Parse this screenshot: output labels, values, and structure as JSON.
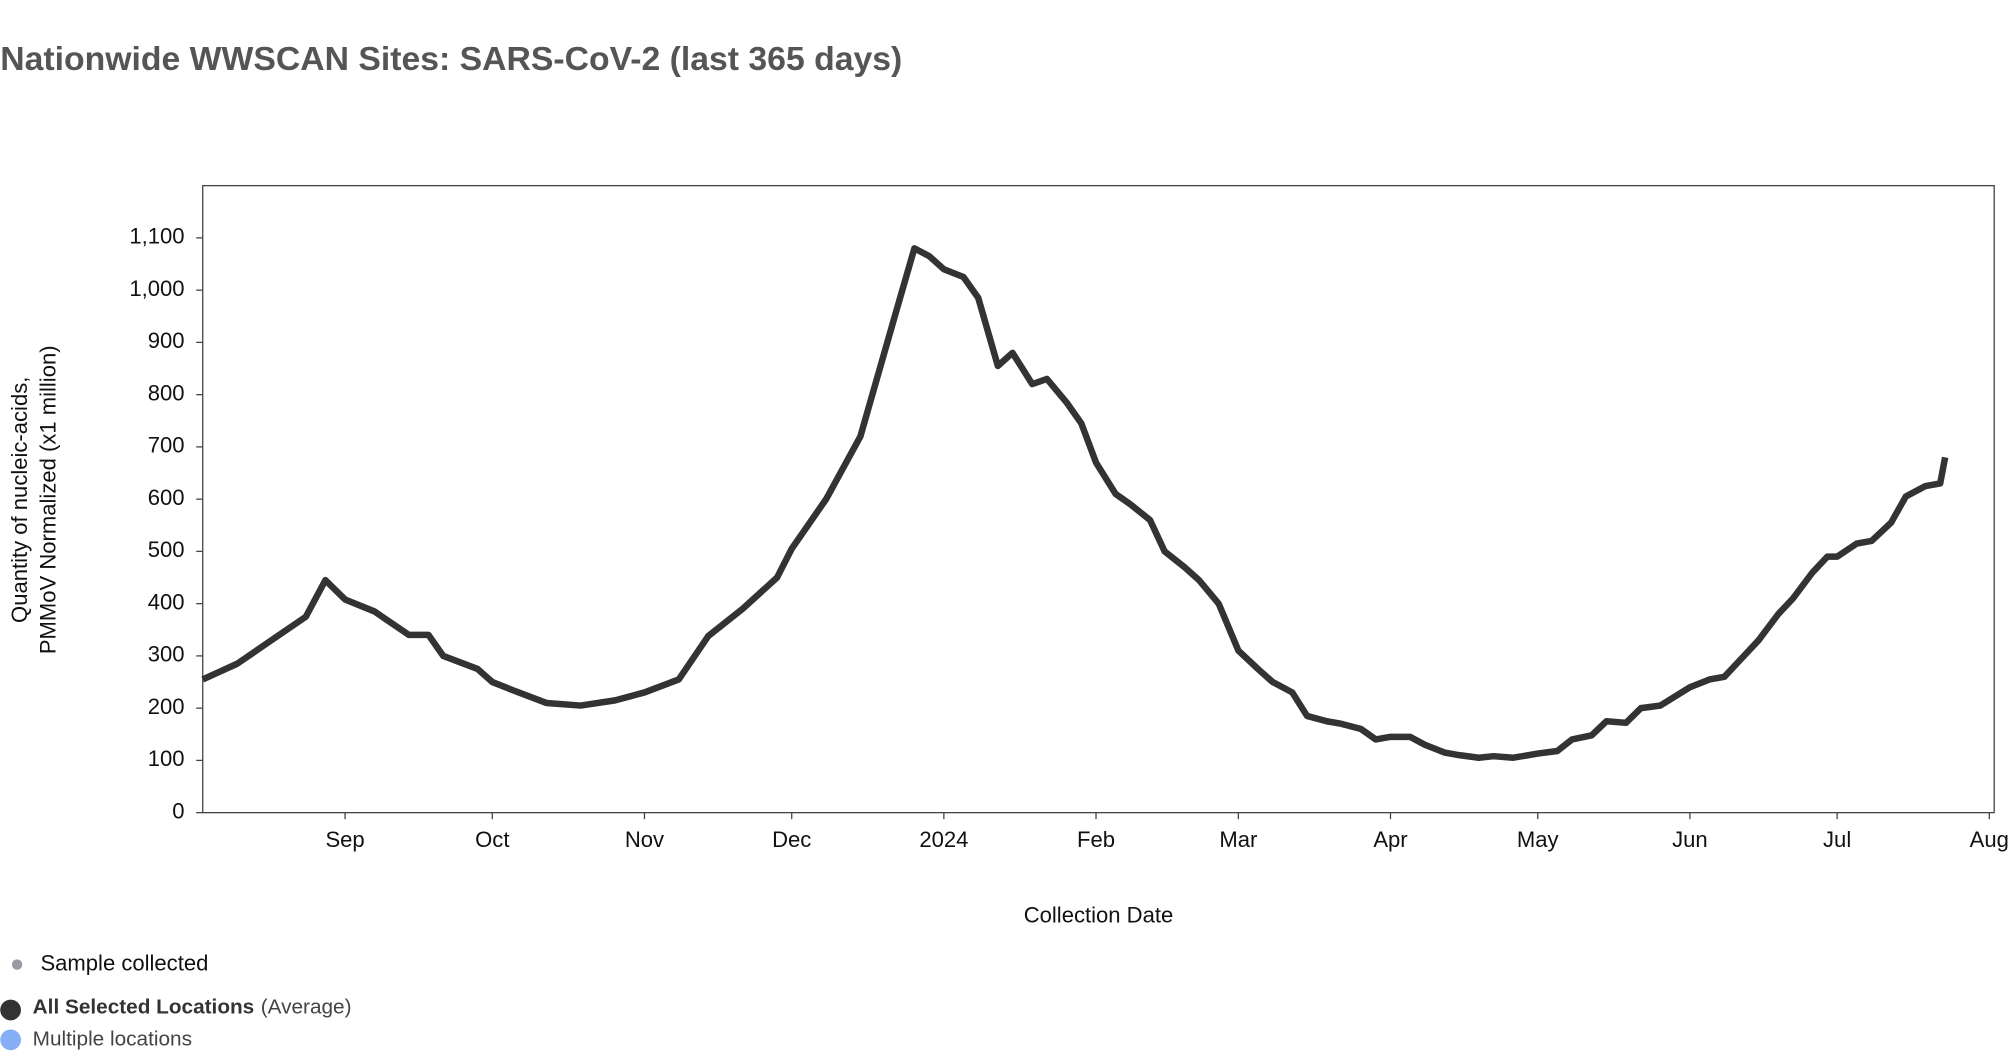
{
  "chart_data": {
    "type": "line",
    "title": "Nationwide WWSCAN Sites: SARS-CoV-2 (last 365 days)",
    "xlabel": "Collection Date",
    "ylabel": [
      "Quantity of nucleic-acids,",
      "PMMoV Normalized (x1 million)"
    ],
    "xlim": [
      "2023-08-03",
      "2024-08-02"
    ],
    "xticks": [
      {
        "value": "2023-09-01",
        "label": "Sep"
      },
      {
        "value": "2023-10-01",
        "label": "Oct"
      },
      {
        "value": "2023-11-01",
        "label": "Nov"
      },
      {
        "value": "2023-12-01",
        "label": "Dec"
      },
      {
        "value": "2024-01-01",
        "label": "2024"
      },
      {
        "value": "2024-02-01",
        "label": "Feb"
      },
      {
        "value": "2024-03-01",
        "label": "Mar"
      },
      {
        "value": "2024-04-01",
        "label": "Apr"
      },
      {
        "value": "2024-05-01",
        "label": "May"
      },
      {
        "value": "2024-06-01",
        "label": "Jun"
      },
      {
        "value": "2024-07-01",
        "label": "Jul"
      },
      {
        "value": "2024-08-01",
        "label": "Aug"
      }
    ],
    "ylim": [
      0,
      1200
    ],
    "yticks": [
      0,
      100,
      200,
      300,
      400,
      500,
      600,
      700,
      800,
      900,
      {
        "value": 1000,
        "label": "1,000"
      },
      {
        "value": 1100,
        "label": "1,100"
      }
    ],
    "x": [
      "2023-08-03",
      "2023-08-10",
      "2023-08-17",
      "2023-08-24",
      "2023-08-28",
      "2023-09-01",
      "2023-09-07",
      "2023-09-14",
      "2023-09-18",
      "2023-09-21",
      "2023-09-28",
      "2023-10-01",
      "2023-10-05",
      "2023-10-12",
      "2023-10-19",
      "2023-10-26",
      "2023-11-01",
      "2023-11-08",
      "2023-11-14",
      "2023-11-21",
      "2023-11-28",
      "2023-12-01",
      "2023-12-08",
      "2023-12-15",
      "2023-12-22",
      "2023-12-26",
      "2023-12-29",
      "2024-01-01",
      "2024-01-05",
      "2024-01-08",
      "2024-01-12",
      "2024-01-15",
      "2024-01-19",
      "2024-01-22",
      "2024-01-26",
      "2024-01-29",
      "2024-02-01",
      "2024-02-05",
      "2024-02-08",
      "2024-02-12",
      "2024-02-15",
      "2024-02-19",
      "2024-02-22",
      "2024-02-26",
      "2024-03-01",
      "2024-03-05",
      "2024-03-08",
      "2024-03-12",
      "2024-03-15",
      "2024-03-19",
      "2024-03-22",
      "2024-03-26",
      "2024-03-29",
      "2024-04-01",
      "2024-04-05",
      "2024-04-08",
      "2024-04-12",
      "2024-04-15",
      "2024-04-19",
      "2024-04-22",
      "2024-04-26",
      "2024-05-01",
      "2024-05-05",
      "2024-05-08",
      "2024-05-12",
      "2024-05-15",
      "2024-05-19",
      "2024-05-22",
      "2024-05-26",
      "2024-06-01",
      "2024-06-05",
      "2024-06-08",
      "2024-06-12",
      "2024-06-15",
      "2024-06-19",
      "2024-06-22",
      "2024-06-26",
      "2024-06-29",
      "2024-07-01",
      "2024-07-05",
      "2024-07-08",
      "2024-07-12",
      "2024-07-15",
      "2024-07-19",
      "2024-07-22",
      "2024-07-23"
    ],
    "series": [
      {
        "name": "All Selected Locations",
        "name_suffix": "(Average)",
        "color": "#333333",
        "values": [
          255,
          285,
          330,
          375,
          445,
          408,
          385,
          340,
          340,
          300,
          275,
          250,
          235,
          210,
          205,
          215,
          230,
          255,
          338,
          390,
          450,
          505,
          600,
          720,
          950,
          1080,
          1065,
          1040,
          1025,
          985,
          855,
          880,
          820,
          830,
          785,
          745,
          670,
          610,
          590,
          560,
          500,
          470,
          445,
          400,
          310,
          275,
          250,
          230,
          185,
          175,
          170,
          160,
          140,
          145,
          145,
          130,
          115,
          110,
          105,
          108,
          105,
          113,
          118,
          140,
          148,
          175,
          172,
          200,
          205,
          240,
          255,
          260,
          300,
          330,
          380,
          410,
          460,
          490,
          490,
          515,
          520,
          555,
          605,
          625,
          630,
          680
        ]
      }
    ],
    "legend": [
      {
        "label": "Sample collected",
        "color": "#9a9aa3"
      },
      {
        "label": "Multiple locations",
        "color": "#86aef5"
      }
    ]
  }
}
